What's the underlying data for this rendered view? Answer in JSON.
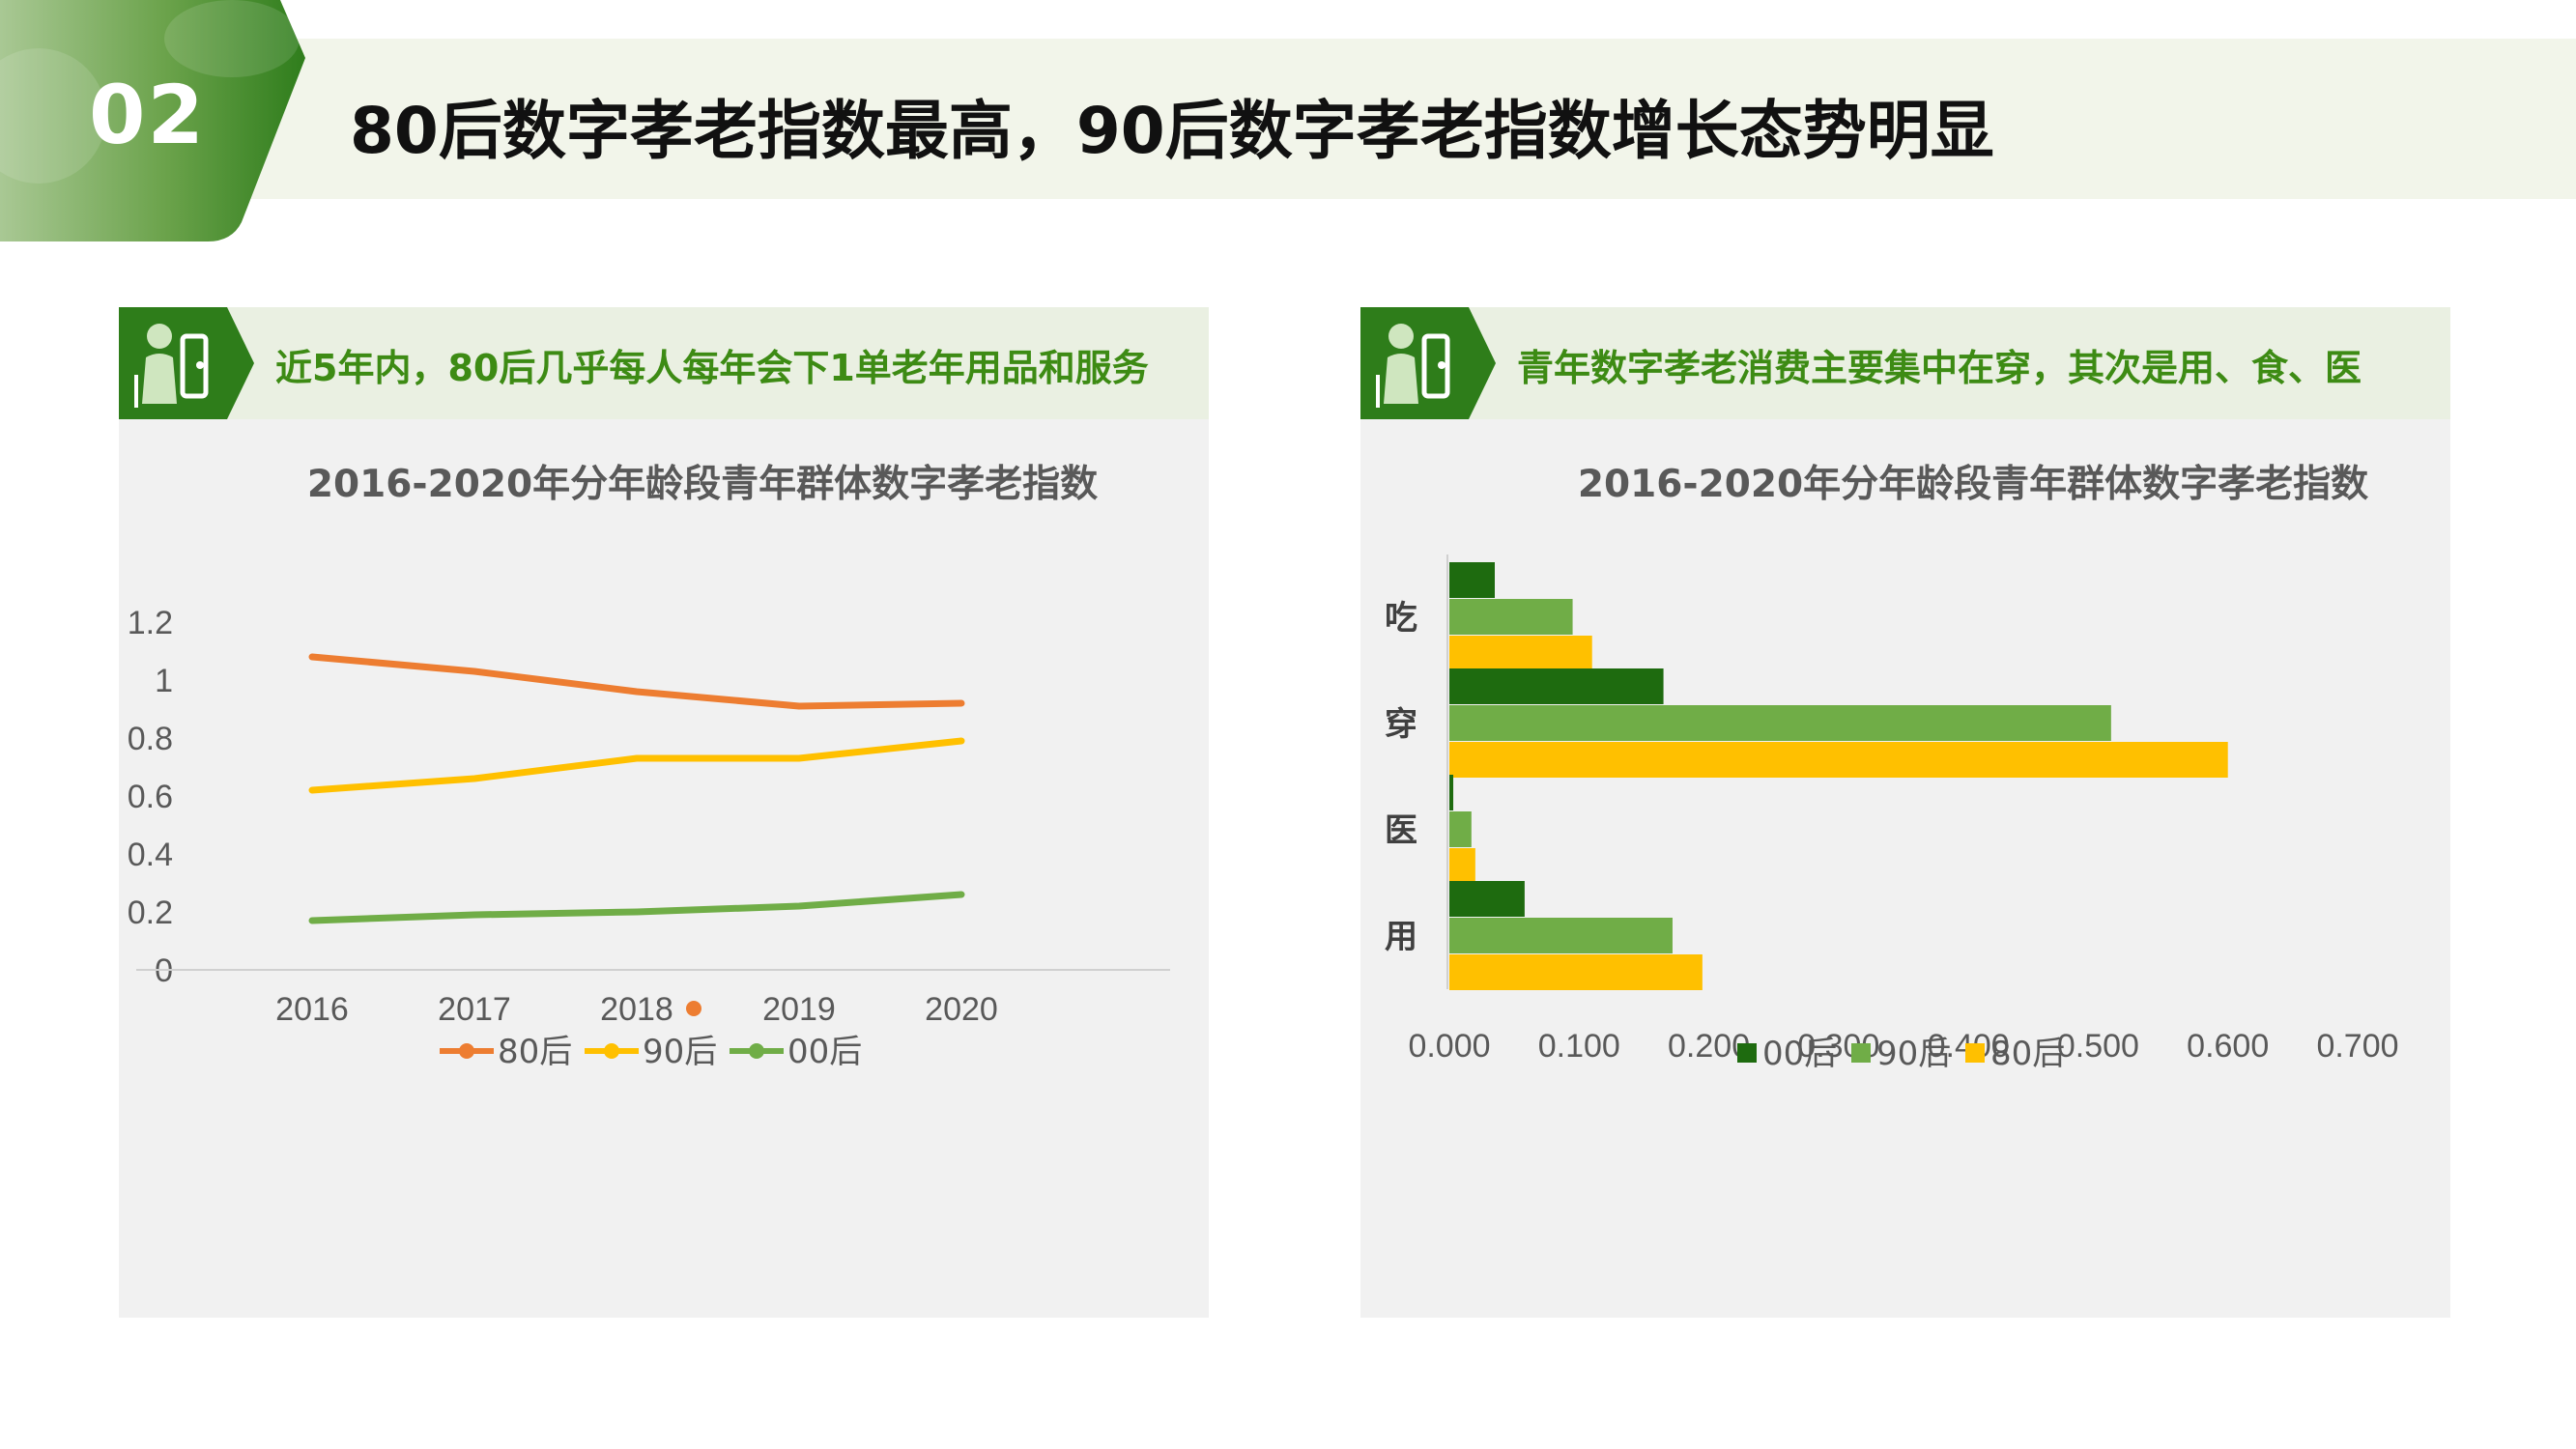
{
  "page": {
    "badge_number": "02",
    "title": "80后数字孝老指数最高，90后数字孝老指数增长态势明显"
  },
  "left_panel": {
    "header": "近5年内，80后几乎每人每年会下1单老年用品和服务",
    "icon": "elderly-care-icon"
  },
  "right_panel": {
    "header": "青年数字孝老消费主要集中在穿，其次是用、食、医",
    "icon": "elderly-care-icon"
  },
  "colors": {
    "brand_green": "#2e7d1a",
    "band": "#f2f5ea",
    "series_80": "#ed7d31",
    "series_90": "#ffc000",
    "series_00": "#70ad47",
    "bar_00": "#1e6b0f",
    "bar_90": "#70ad47",
    "bar_80": "#ffc000"
  },
  "chart_data": [
    {
      "type": "line",
      "title": "2016-2020年分年龄段青年群体数字孝老指数",
      "categories": [
        "2016",
        "2017",
        "2018",
        "2019",
        "2020"
      ],
      "ylim": [
        0,
        1.2
      ],
      "yticks": [
        "0",
        "0.2",
        "0.4",
        "0.6",
        "0.8",
        "1",
        "1.2"
      ],
      "grid": false,
      "legend": "bottom",
      "series": [
        {
          "name": "80后",
          "values": [
            1.08,
            1.03,
            0.96,
            0.91,
            0.92
          ],
          "color": "#ed7d31"
        },
        {
          "name": "90后",
          "values": [
            0.62,
            0.66,
            0.73,
            0.73,
            0.79
          ],
          "color": "#ffc000"
        },
        {
          "name": "00后",
          "values": [
            0.17,
            0.19,
            0.2,
            0.22,
            0.26
          ],
          "color": "#70ad47"
        }
      ]
    },
    {
      "type": "bar",
      "orientation": "horizontal",
      "title": "2016-2020年分年龄段青年群体数字孝老指数",
      "categories": [
        "吃",
        "穿",
        "医",
        "用"
      ],
      "xlim": [
        0,
        0.7
      ],
      "xticks": [
        "0.000",
        "0.100",
        "0.200",
        "0.300",
        "0.400",
        "0.500",
        "0.600",
        "0.700"
      ],
      "legend": "bottom",
      "series": [
        {
          "name": "00后",
          "values": [
            0.035,
            0.165,
            0.003,
            0.058
          ],
          "color": "#1e6b0f"
        },
        {
          "name": "90后",
          "values": [
            0.095,
            0.51,
            0.017,
            0.172
          ],
          "color": "#70ad47"
        },
        {
          "name": "80后",
          "values": [
            0.11,
            0.6,
            0.02,
            0.195
          ],
          "color": "#ffc000"
        }
      ]
    }
  ]
}
